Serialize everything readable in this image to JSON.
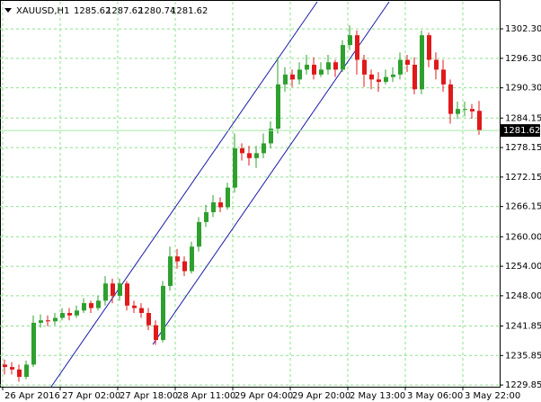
{
  "chart_data": {
    "type": "candlestick",
    "symbol": "XAUUSD,H1",
    "header_prices": [
      1285.62,
      1287.62,
      1280.74,
      1281.62
    ],
    "categories": [
      "26 Apr 2016",
      null,
      null,
      null,
      null,
      null,
      null,
      null,
      "27 Apr 02:00",
      null,
      null,
      null,
      null,
      null,
      null,
      null,
      "27 Apr 18:00",
      null,
      null,
      null,
      null,
      null,
      null,
      null,
      "28 Apr 11:00",
      null,
      null,
      null,
      null,
      null,
      null,
      null,
      "29 Apr 04:00",
      null,
      null,
      null,
      null,
      null,
      null,
      null,
      "29 Apr 20:00",
      null,
      null,
      null,
      null,
      null,
      null,
      null,
      "2 May 13:00",
      null,
      null,
      null,
      null,
      null,
      null,
      null,
      "3 May 06:00",
      null,
      null,
      null,
      null,
      null,
      null,
      null,
      "3 May 22:00",
      null,
      null
    ],
    "open": [
      1234,
      1233.5,
      1233,
      1231.5,
      1234,
      1242.5,
      1243,
      1242.8,
      1243.5,
      1244.5,
      1244,
      1245,
      1246.5,
      1245.5,
      1247,
      1250.5,
      1248,
      1250.5,
      1246,
      1245.5,
      1244.5,
      1242,
      1239,
      1250,
      1256,
      1255,
      1253,
      1258,
      1263,
      1265,
      1267,
      1266,
      1270,
      1278,
      1277,
      1276,
      1277,
      1279,
      1282,
      1291,
      1293,
      1292,
      1294,
      1295,
      1293,
      1294,
      1295.5,
      1294,
      1299,
      1301,
      1296,
      1293,
      1292,
      1291.5,
      1292.5,
      1293,
      1296,
      1295,
      1290,
      1301,
      1296,
      1294,
      1291,
      1285,
      1286,
      1286,
      1285.62
    ],
    "high": [
      1235,
      1234.5,
      1234,
      1234.8,
      1244,
      1244.2,
      1244,
      1244.5,
      1245.5,
      1245.5,
      1246,
      1247.5,
      1247,
      1248,
      1252,
      1251.5,
      1251.5,
      1251,
      1247,
      1246.5,
      1245.5,
      1243,
      1251,
      1258,
      1257.5,
      1256,
      1259,
      1264,
      1266.5,
      1268.5,
      1268,
      1271,
      1281,
      1279,
      1278.5,
      1278.5,
      1281,
      1283.5,
      1296.5,
      1294.5,
      1294,
      1295.5,
      1297,
      1296.5,
      1295.5,
      1297,
      1296,
      1300,
      1303,
      1302,
      1297,
      1294,
      1293.5,
      1294,
      1294.5,
      1297.5,
      1297,
      1296.5,
      1302,
      1301.5,
      1297.5,
      1296,
      1292,
      1287.5,
      1287.5,
      1287,
      1287.62
    ],
    "low": [
      1232,
      1232,
      1230.5,
      1231,
      1233.5,
      1241.5,
      1241.8,
      1242,
      1243,
      1243,
      1243.5,
      1244.5,
      1244.5,
      1245,
      1246,
      1246.5,
      1247,
      1245,
      1244.5,
      1243.5,
      1241,
      1238,
      1238.5,
      1249,
      1253.5,
      1252,
      1252.5,
      1257,
      1262,
      1264,
      1265,
      1265.5,
      1269,
      1275.5,
      1274.5,
      1274,
      1276,
      1278,
      1281,
      1289.5,
      1290.5,
      1291,
      1293,
      1292,
      1292.5,
      1293,
      1292.5,
      1293.5,
      1298,
      1293,
      1290.5,
      1290,
      1289.5,
      1291,
      1291.5,
      1292,
      1293.5,
      1289,
      1289,
      1294.5,
      1292,
      1289.5,
      1283,
      1284,
      1284.5,
      1284,
      1280.74
    ],
    "close": [
      1233.5,
      1233,
      1231.5,
      1234,
      1242.5,
      1243,
      1242.8,
      1243.5,
      1244.5,
      1244,
      1245,
      1246.5,
      1245.5,
      1247,
      1250.5,
      1248,
      1250.5,
      1246,
      1245.5,
      1244.5,
      1242,
      1239,
      1250,
      1256,
      1255,
      1253,
      1258,
      1263,
      1265,
      1267,
      1266,
      1270,
      1278,
      1277,
      1276,
      1277,
      1279,
      1282,
      1291,
      1293,
      1292,
      1294,
      1295,
      1293,
      1294,
      1295.5,
      1294,
      1299,
      1301,
      1296,
      1293,
      1292,
      1291.5,
      1292.5,
      1293,
      1296,
      1295,
      1290,
      1301,
      1296,
      1294,
      1291,
      1285,
      1286,
      1286,
      1285.5,
      1281.62
    ],
    "up_color": "#2ea02e",
    "down_color": "#e0191b",
    "ylim": [
      1229.5,
      1307.8
    ],
    "yticks": [
      {
        "value": 1302.3,
        "label": "1302.30"
      },
      {
        "value": 1296.3,
        "label": "1296.30"
      },
      {
        "value": 1290.3,
        "label": "1290.30"
      },
      1284.15,
      1278.15,
      1272.15,
      1266.15,
      {
        "value": 1260,
        "label": "1260.00"
      },
      {
        "value": 1254,
        "label": "1254.00"
      },
      {
        "value": 1248,
        "label": "1248.00"
      },
      1241.85,
      1235.85,
      1229.85
    ],
    "grid": true
  }
}
